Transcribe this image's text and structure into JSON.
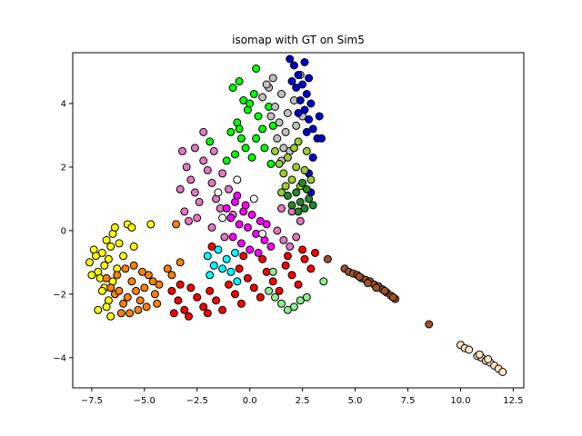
{
  "chart_data": {
    "type": "scatter",
    "title": "isomap with GT on Sim5",
    "xlabel": "",
    "ylabel": "",
    "xlim": [
      -8.4,
      13.0
    ],
    "ylim": [
      -4.95,
      5.6
    ],
    "xticks": [
      -7.5,
      -5.0,
      -2.5,
      0.0,
      2.5,
      5.0,
      7.5,
      10.0,
      12.5
    ],
    "xtick_labels": [
      "−7.5",
      "−5.0",
      "−2.5",
      "0.0",
      "2.5",
      "5.0",
      "7.5",
      "10.0",
      "12.5"
    ],
    "yticks": [
      -4,
      -2,
      0,
      2,
      4
    ],
    "ytick_labels": [
      "−4",
      "−2",
      "0",
      "2",
      "4"
    ],
    "grid": false,
    "legend": "none",
    "marker_edge_color": "#000000",
    "series": [
      {
        "color": "#ffff00",
        "points": [
          [
            -7.6,
            -1.0
          ],
          [
            -7.4,
            -0.6
          ],
          [
            -7.2,
            -1.3
          ],
          [
            -7.0,
            -0.7
          ],
          [
            -6.9,
            -1.1
          ],
          [
            -6.8,
            -0.3
          ],
          [
            -6.6,
            -0.5
          ],
          [
            -6.5,
            -0.1
          ],
          [
            -6.4,
            0.1
          ],
          [
            -6.7,
            -0.9
          ],
          [
            -7.1,
            -1.5
          ],
          [
            -6.9,
            -1.8
          ],
          [
            -6.7,
            -2.2
          ],
          [
            -6.5,
            -1.6
          ],
          [
            -6.3,
            -1.2
          ],
          [
            -7.3,
            -0.8
          ],
          [
            -6.2,
            -0.4
          ],
          [
            -6.0,
            -0.8
          ],
          [
            -5.8,
            0.2
          ],
          [
            -5.6,
            0.1
          ],
          [
            -7.5,
            -1.4
          ],
          [
            -6.8,
            -2.4
          ],
          [
            -7.2,
            -2.5
          ],
          [
            -5.5,
            -0.5
          ],
          [
            -4.7,
            0.2
          ],
          [
            -6.6,
            -2.7
          ],
          [
            -7.0,
            -1.9
          ]
        ]
      },
      {
        "color": "#ff7f0e",
        "points": [
          [
            -6.8,
            -1.5
          ],
          [
            -6.6,
            -1.8
          ],
          [
            -6.4,
            -2.0
          ],
          [
            -6.2,
            -1.9
          ],
          [
            -6.0,
            -2.3
          ],
          [
            -5.8,
            -2.1
          ],
          [
            -5.6,
            -1.6
          ],
          [
            -5.4,
            -1.9
          ],
          [
            -5.2,
            -2.2
          ],
          [
            -5.0,
            -1.8
          ],
          [
            -4.8,
            -1.4
          ],
          [
            -4.6,
            -1.6
          ],
          [
            -4.9,
            -2.4
          ],
          [
            -5.3,
            -2.5
          ],
          [
            -5.7,
            -2.6
          ],
          [
            -6.1,
            -2.6
          ],
          [
            -4.5,
            -2.0
          ],
          [
            -6.3,
            -1.4
          ],
          [
            -5.9,
            -1.2
          ],
          [
            -5.5,
            -1.1
          ],
          [
            -3.7,
            -1.4
          ],
          [
            -3.9,
            -1.2
          ],
          [
            -3.5,
            0.2
          ],
          [
            -3.3,
            -1.0
          ],
          [
            -4.3,
            -1.7
          ],
          [
            -4.4,
            -2.3
          ],
          [
            -5.1,
            -1.3
          ]
        ]
      },
      {
        "color": "#e377c2",
        "points": [
          [
            -3.2,
            2.5
          ],
          [
            -3.0,
            2.0
          ],
          [
            -2.8,
            1.6
          ],
          [
            -2.6,
            1.2
          ],
          [
            -2.4,
            0.9
          ],
          [
            -2.2,
            2.2
          ],
          [
            -2.0,
            1.9
          ],
          [
            -1.8,
            1.5
          ],
          [
            -1.6,
            1.0
          ],
          [
            -1.4,
            0.7
          ],
          [
            -2.6,
            2.6
          ],
          [
            -2.2,
            3.1
          ],
          [
            -1.7,
            2.5
          ],
          [
            -1.3,
            1.8
          ],
          [
            -3.3,
            1.3
          ],
          [
            -3.1,
            0.6
          ],
          [
            -2.9,
            0.3
          ],
          [
            -2.5,
            0.4
          ],
          [
            -1.0,
            1.3
          ],
          [
            -0.8,
            0.5
          ],
          [
            -1.8,
            0.1
          ],
          [
            -1.2,
            -0.2
          ],
          [
            1.3,
            0.0
          ],
          [
            1.6,
            -0.3
          ],
          [
            1.9,
            -0.5
          ],
          [
            2.2,
            -0.2
          ],
          [
            1.5,
            0.7
          ],
          [
            2.0,
            0.6
          ],
          [
            2.4,
            0.3
          ]
        ]
      },
      {
        "color": "#ff00ff",
        "points": [
          [
            -1.1,
            0.7
          ],
          [
            -0.9,
            0.4
          ],
          [
            -0.7,
            0.9
          ],
          [
            -0.5,
            0.2
          ],
          [
            -0.3,
            0.6
          ],
          [
            -0.1,
            0.1
          ],
          [
            0.1,
            0.5
          ],
          [
            0.3,
            -0.1
          ],
          [
            0.5,
            0.3
          ],
          [
            0.7,
            -0.3
          ],
          [
            -0.4,
            -0.4
          ],
          [
            -0.8,
            -0.2
          ],
          [
            0.0,
            -0.6
          ],
          [
            0.4,
            -0.7
          ],
          [
            0.8,
            0.2
          ],
          [
            -0.6,
            1.1
          ],
          [
            -0.2,
            0.8
          ],
          [
            1.0,
            -0.5
          ]
        ]
      },
      {
        "color": "#ffffff",
        "points": [
          [
            -1.5,
            1.2
          ],
          [
            -1.3,
            0.4
          ],
          [
            -0.6,
            1.6
          ],
          [
            0.2,
            1.0
          ],
          [
            0.6,
            -0.1
          ]
        ]
      },
      {
        "color": "#00ffff",
        "points": [
          [
            -2.0,
            -0.8
          ],
          [
            -1.7,
            -1.1
          ],
          [
            -1.5,
            -0.6
          ],
          [
            -1.3,
            -1.2
          ],
          [
            -1.1,
            -0.9
          ],
          [
            -0.9,
            -1.3
          ],
          [
            -0.7,
            -0.7
          ],
          [
            -1.9,
            -1.4
          ],
          [
            -0.6,
            -1.6
          ]
        ]
      },
      {
        "color": "#ff0000",
        "points": [
          [
            -3.7,
            -1.9
          ],
          [
            -3.4,
            -2.2
          ],
          [
            -3.1,
            -2.5
          ],
          [
            -2.8,
            -1.8
          ],
          [
            -2.5,
            -2.1
          ],
          [
            -2.2,
            -2.4
          ],
          [
            -1.9,
            -1.9
          ],
          [
            -1.6,
            -2.2
          ],
          [
            -1.3,
            -2.5
          ],
          [
            -1.0,
            -1.7
          ],
          [
            -0.7,
            -2.0
          ],
          [
            -0.4,
            -2.3
          ],
          [
            -0.1,
            -1.5
          ],
          [
            0.2,
            -1.8
          ],
          [
            0.5,
            -2.1
          ],
          [
            0.8,
            -1.3
          ],
          [
            1.1,
            -1.6
          ],
          [
            1.4,
            -1.9
          ],
          [
            1.7,
            -1.1
          ],
          [
            2.0,
            -1.4
          ],
          [
            2.3,
            -1.7
          ],
          [
            2.6,
            -0.9
          ],
          [
            2.9,
            -1.2
          ],
          [
            3.1,
            -0.7
          ],
          [
            -3.6,
            -2.6
          ],
          [
            -2.9,
            -2.7
          ],
          [
            -2.0,
            -2.6
          ],
          [
            -3.3,
            -1.7
          ],
          [
            -1.8,
            -0.5
          ],
          [
            -0.3,
            -0.8
          ],
          [
            0.6,
            -0.9
          ],
          [
            1.8,
            -0.8
          ],
          [
            -0.5,
            -1.2
          ],
          [
            2.5,
            -0.6
          ]
        ]
      },
      {
        "color": "#00ff00",
        "points": [
          [
            -0.8,
            4.5
          ],
          [
            -0.5,
            4.7
          ],
          [
            -0.3,
            4.1
          ],
          [
            -0.1,
            3.8
          ],
          [
            0.2,
            4.3
          ],
          [
            0.4,
            3.6
          ],
          [
            0.6,
            3.2
          ],
          [
            -0.6,
            3.4
          ],
          [
            -0.4,
            2.9
          ],
          [
            -0.2,
            2.6
          ],
          [
            0.1,
            2.3
          ],
          [
            0.3,
            2.9
          ],
          [
            0.7,
            2.6
          ],
          [
            -0.9,
            3.1
          ],
          [
            -0.7,
            2.4
          ],
          [
            0.9,
            3.9
          ],
          [
            1.1,
            3.3
          ],
          [
            1.0,
            2.1
          ],
          [
            -1.1,
            2.2
          ],
          [
            -1.9,
            2.8
          ],
          [
            0.3,
            5.1
          ],
          [
            0.0,
            4.0
          ],
          [
            -0.5,
            3.2
          ]
        ]
      },
      {
        "color": "#c0c0c0",
        "points": [
          [
            0.6,
            4.2
          ],
          [
            0.9,
            4.5
          ],
          [
            1.2,
            3.9
          ],
          [
            1.5,
            4.3
          ],
          [
            1.8,
            3.7
          ],
          [
            2.1,
            4.1
          ],
          [
            1.4,
            3.4
          ],
          [
            1.7,
            3.1
          ],
          [
            1.0,
            3.6
          ],
          [
            1.3,
            2.9
          ],
          [
            1.6,
            2.6
          ],
          [
            0.8,
            4.6
          ],
          [
            1.9,
            2.5
          ],
          [
            2.2,
            3.3
          ],
          [
            2.5,
            3.6
          ],
          [
            1.1,
            4.8
          ],
          [
            2.4,
            4.9
          ],
          [
            1.5,
            2.2
          ]
        ]
      },
      {
        "color": "#0000cd",
        "points": [
          [
            1.9,
            5.4
          ],
          [
            2.1,
            5.2
          ],
          [
            2.3,
            4.9
          ],
          [
            2.5,
            4.6
          ],
          [
            2.7,
            4.3
          ],
          [
            2.9,
            4.0
          ],
          [
            2.2,
            4.5
          ],
          [
            2.4,
            4.1
          ],
          [
            2.6,
            3.8
          ],
          [
            2.8,
            3.5
          ],
          [
            3.0,
            3.2
          ],
          [
            3.2,
            2.9
          ],
          [
            2.0,
            4.7
          ],
          [
            2.3,
            3.7
          ],
          [
            2.7,
            3.1
          ],
          [
            3.4,
            2.9
          ],
          [
            2.6,
            5.3
          ],
          [
            2.8,
            4.8
          ],
          [
            3.3,
            3.6
          ],
          [
            3.0,
            2.3
          ],
          [
            2.8,
            1.8
          ],
          [
            2.9,
            1.2
          ]
        ]
      },
      {
        "color": "#9acd32",
        "points": [
          [
            1.2,
            2.5
          ],
          [
            1.4,
            2.1
          ],
          [
            1.6,
            1.8
          ],
          [
            1.8,
            2.3
          ],
          [
            2.0,
            1.6
          ],
          [
            2.2,
            2.0
          ],
          [
            2.4,
            1.4
          ],
          [
            2.6,
            1.9
          ],
          [
            2.1,
            2.6
          ],
          [
            1.7,
            1.4
          ],
          [
            2.3,
            2.8
          ],
          [
            2.7,
            2.5
          ],
          [
            2.9,
            1.6
          ],
          [
            1.5,
            1.2
          ]
        ]
      },
      {
        "color": "#228b22",
        "points": [
          [
            1.8,
            1.1
          ],
          [
            2.0,
            0.8
          ],
          [
            2.2,
            1.2
          ],
          [
            2.4,
            0.9
          ],
          [
            2.6,
            0.7
          ],
          [
            2.8,
            1.0
          ],
          [
            3.0,
            0.8
          ],
          [
            2.5,
            1.5
          ],
          [
            2.7,
            1.3
          ],
          [
            2.3,
            0.6
          ]
        ]
      },
      {
        "color": "#90ee90",
        "points": [
          [
            0.9,
            -1.9
          ],
          [
            1.2,
            -2.1
          ],
          [
            1.5,
            -2.3
          ],
          [
            1.8,
            -2.5
          ],
          [
            2.1,
            -2.4
          ],
          [
            2.4,
            -2.2
          ],
          [
            2.7,
            -2.1
          ],
          [
            3.5,
            -1.6
          ],
          [
            1.1,
            -1.3
          ]
        ]
      },
      {
        "color": "#a0522d",
        "points": [
          [
            3.7,
            -0.9
          ],
          [
            4.5,
            -1.2
          ],
          [
            4.7,
            -1.3
          ],
          [
            4.9,
            -1.35
          ],
          [
            5.1,
            -1.4
          ],
          [
            5.3,
            -1.5
          ],
          [
            5.5,
            -1.55
          ],
          [
            5.7,
            -1.6
          ],
          [
            5.9,
            -1.7
          ],
          [
            6.1,
            -1.75
          ],
          [
            6.3,
            -1.85
          ],
          [
            6.5,
            -1.95
          ],
          [
            6.7,
            -2.05
          ],
          [
            6.9,
            -2.15
          ],
          [
            5.2,
            -1.45
          ],
          [
            5.6,
            -1.65
          ],
          [
            6.0,
            -1.8
          ],
          [
            6.4,
            -1.9
          ],
          [
            6.8,
            -2.1
          ],
          [
            8.5,
            -2.95
          ]
        ]
      },
      {
        "color": "#ffe4c4",
        "points": [
          [
            10.0,
            -3.6
          ],
          [
            10.2,
            -3.7
          ],
          [
            10.4,
            -3.75
          ],
          [
            10.8,
            -3.95
          ],
          [
            11.0,
            -4.0
          ],
          [
            11.2,
            -4.1
          ],
          [
            11.4,
            -4.15
          ],
          [
            11.6,
            -4.25
          ],
          [
            11.8,
            -4.35
          ],
          [
            12.0,
            -4.45
          ],
          [
            10.9,
            -3.9
          ],
          [
            11.3,
            -4.05
          ]
        ]
      }
    ]
  }
}
